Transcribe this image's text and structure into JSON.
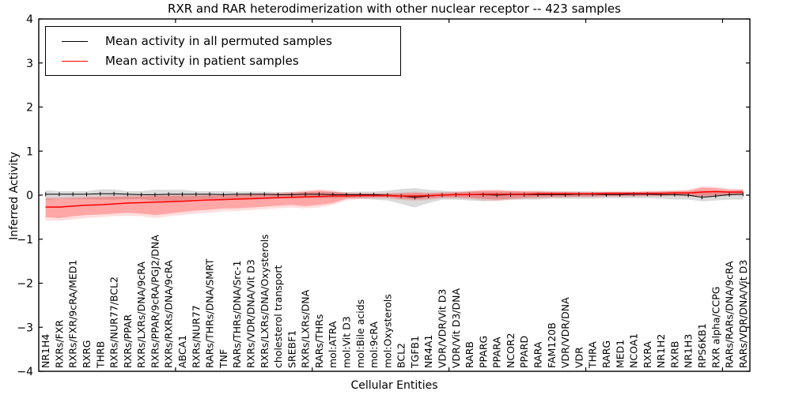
{
  "figure": {
    "title": "RXR and RAR heterodimerization with other nuclear receptor -- 423 samples",
    "xlabel": "Cellular Entities",
    "ylabel": "Inferred Activity"
  },
  "legend": {
    "items": [
      {
        "label": "Mean activity in all permuted samples",
        "color": "#000000"
      },
      {
        "label": "Mean activity in patient samples",
        "color": "#ff0000"
      }
    ]
  },
  "chart_data": {
    "type": "line",
    "title": "RXR and RAR heterodimerization with other nuclear receptor -- 423 samples",
    "xlabel": "Cellular Entities",
    "ylabel": "Inferred Activity",
    "ylim": [
      -4,
      4
    ],
    "yticks": [
      4,
      3,
      2,
      1,
      0,
      -1,
      -2,
      -3,
      -4
    ],
    "xticks_axis_coords": [
      10,
      20,
      30,
      40,
      50
    ],
    "grid": false,
    "legend_position": "upper left",
    "frame_color": "#000000",
    "gray_band_color": "rgba(110,110,110,0.25)",
    "red_band_inner_color": "rgba(255,0,0,0.25)",
    "red_band_outer_color": "rgba(255,0,0,0.13)",
    "categories": [
      "NR1H4",
      "RXRs/FXR",
      "RXRs/FXR/9cRA/MED1",
      "RXRG",
      "THRB",
      "RXRs/NUR77/BCL2",
      "RXRs/PPAR",
      "RXRs/LXRs/DNA/9cRA",
      "RXRs/PPAR/9cRA/PGJ2/DNA",
      "RXRs/RXRs/DNA/9cRA",
      "ABCA1",
      "RXRs/NUR77",
      "RARs/THRs/DNA/SMRT",
      "TNF",
      "RARs/THRs/DNA/Src-1",
      "RXRs/VDR/DNA/Vit D3",
      "RXRs/LXRs/DNA/Oxysterols",
      "cholesterol transport",
      "SREBF1",
      "RXRs/LXRs/DNA",
      "RARs/THRs",
      "mol:ATRA",
      "mol:Vit D3",
      "mol:Bile acids",
      "mol:9cRA",
      "mol:Oxysterols",
      "BCL2",
      "TGFB1",
      "NR4A1",
      "VDR/VDR/Vit D3",
      "VDR/Vit D3/DNA",
      "RARB",
      "PPARG",
      "PPARA",
      "NCOR2",
      "PPARD",
      "RARA",
      "FAM120B",
      "VDR/VDR/DNA",
      "VDR",
      "THRA",
      "RARG",
      "MED1",
      "NCOA1",
      "RXRA",
      "NR1H2",
      "RXRB",
      "NR1H3",
      "RPS6KB1",
      "RXR alpha/CCPG",
      "RARs/RARs/DNA/9cRA",
      "RARs/VDR/DNA/Vit D3"
    ],
    "series": [
      {
        "name": "Mean activity in all permuted samples",
        "color": "#000000",
        "values": [
          0.02,
          0.02,
          0.02,
          0.02,
          0.03,
          0.03,
          0.02,
          0.01,
          0.01,
          0.02,
          0.02,
          0.02,
          0.02,
          0.01,
          0.02,
          0.02,
          0.02,
          0.01,
          0.01,
          0.02,
          0.02,
          0.01,
          0.01,
          0.01,
          0.01,
          0.0,
          -0.02,
          -0.05,
          -0.02,
          0.0,
          0.01,
          0.01,
          0.01,
          0.0,
          0.01,
          0.01,
          0.01,
          0.01,
          0.01,
          0.02,
          0.02,
          0.01,
          0.01,
          0.02,
          0.02,
          0.01,
          0.01,
          0.0,
          -0.05,
          -0.02,
          0.01,
          0.02
        ],
        "band_lo": [
          -0.11,
          -0.09,
          -0.09,
          -0.09,
          -0.1,
          -0.1,
          -0.09,
          -0.09,
          -0.13,
          -0.13,
          -0.12,
          -0.09,
          -0.09,
          -0.09,
          -0.1,
          -0.1,
          -0.09,
          -0.07,
          -0.07,
          -0.07,
          -0.07,
          -0.07,
          -0.07,
          -0.08,
          -0.1,
          -0.12,
          -0.2,
          -0.28,
          -0.18,
          -0.1,
          -0.1,
          -0.12,
          -0.14,
          -0.12,
          -0.1,
          -0.1,
          -0.1,
          -0.08,
          -0.08,
          -0.08,
          -0.08,
          -0.07,
          -0.07,
          -0.07,
          -0.07,
          -0.08,
          -0.1,
          -0.1,
          -0.14,
          -0.12,
          -0.1,
          -0.1
        ],
        "band_hi": [
          0.11,
          0.09,
          0.09,
          0.09,
          0.13,
          0.13,
          0.09,
          0.09,
          0.12,
          0.12,
          0.12,
          0.09,
          0.09,
          0.09,
          0.08,
          0.08,
          0.08,
          0.07,
          0.07,
          0.07,
          0.07,
          0.07,
          0.07,
          0.08,
          0.08,
          0.1,
          0.14,
          0.16,
          0.12,
          0.1,
          0.08,
          0.08,
          0.08,
          0.08,
          0.08,
          0.08,
          0.08,
          0.08,
          0.08,
          0.08,
          0.08,
          0.07,
          0.07,
          0.07,
          0.07,
          0.08,
          0.08,
          0.08,
          0.1,
          0.1,
          0.08,
          0.1
        ]
      },
      {
        "name": "Mean activity in patient samples",
        "color": "#ff0000",
        "values": [
          -0.27,
          -0.27,
          -0.25,
          -0.23,
          -0.22,
          -0.2,
          -0.18,
          -0.17,
          -0.16,
          -0.15,
          -0.14,
          -0.12,
          -0.11,
          -0.1,
          -0.09,
          -0.08,
          -0.07,
          -0.06,
          -0.05,
          -0.04,
          -0.03,
          -0.02,
          -0.02,
          -0.01,
          -0.01,
          -0.01,
          -0.02,
          -0.02,
          -0.01,
          0.0,
          0.01,
          0.01,
          0.02,
          0.02,
          0.02,
          0.02,
          0.03,
          0.03,
          0.03,
          0.03,
          0.03,
          0.04,
          0.04,
          0.04,
          0.04,
          0.04,
          0.05,
          0.05,
          0.07,
          0.08,
          0.07,
          0.07
        ],
        "band_lo": [
          -0.5,
          -0.52,
          -0.48,
          -0.45,
          -0.44,
          -0.42,
          -0.4,
          -0.42,
          -0.45,
          -0.42,
          -0.38,
          -0.35,
          -0.33,
          -0.3,
          -0.3,
          -0.28,
          -0.26,
          -0.24,
          -0.22,
          -0.25,
          -0.22,
          -0.18,
          -0.08,
          -0.06,
          -0.05,
          -0.05,
          -0.08,
          -0.1,
          -0.08,
          -0.05,
          -0.05,
          -0.06,
          -0.08,
          -0.1,
          -0.08,
          -0.06,
          -0.05,
          -0.04,
          -0.04,
          -0.03,
          -0.03,
          -0.02,
          -0.02,
          -0.02,
          -0.01,
          -0.01,
          0.0,
          -0.01,
          -0.02,
          0.0,
          0.01,
          0.02
        ],
        "band_hi": [
          -0.08,
          -0.08,
          -0.07,
          -0.06,
          -0.05,
          -0.04,
          -0.04,
          -0.03,
          -0.02,
          -0.02,
          -0.02,
          -0.02,
          -0.01,
          -0.01,
          0.0,
          0.01,
          0.02,
          0.03,
          0.05,
          0.08,
          0.1,
          0.08,
          0.04,
          0.03,
          0.03,
          0.03,
          0.04,
          0.05,
          0.04,
          0.05,
          0.06,
          0.08,
          0.1,
          0.1,
          0.09,
          0.08,
          0.08,
          0.07,
          0.07,
          0.06,
          0.06,
          0.07,
          0.07,
          0.07,
          0.08,
          0.08,
          0.09,
          0.1,
          0.17,
          0.16,
          0.12,
          0.12
        ],
        "outer_lo": [
          -0.58,
          -0.58,
          -0.55,
          -0.52,
          -0.5,
          -0.48,
          -0.47,
          -0.48,
          -0.52,
          -0.48,
          -0.45,
          -0.42,
          -0.4,
          -0.37,
          -0.36,
          -0.34,
          -0.32,
          -0.3,
          -0.28,
          -0.3,
          -0.28,
          -0.22,
          -0.12,
          -0.09,
          -0.08,
          -0.08,
          -0.11,
          -0.13,
          -0.11,
          -0.08,
          -0.08,
          -0.09,
          -0.12,
          -0.14,
          -0.11,
          -0.09,
          -0.08,
          -0.06,
          -0.06,
          -0.05,
          -0.05,
          -0.04,
          -0.04,
          -0.04,
          -0.03,
          -0.03,
          -0.02,
          -0.03,
          -0.05,
          -0.02,
          -0.01,
          0.0
        ],
        "outer_hi": [
          -0.04,
          -0.04,
          -0.03,
          -0.02,
          -0.01,
          0.0,
          0.0,
          0.01,
          0.02,
          0.02,
          0.02,
          0.02,
          0.02,
          0.02,
          0.03,
          0.04,
          0.05,
          0.06,
          0.08,
          0.11,
          0.13,
          0.11,
          0.06,
          0.05,
          0.05,
          0.05,
          0.06,
          0.08,
          0.06,
          0.07,
          0.08,
          0.1,
          0.12,
          0.13,
          0.11,
          0.1,
          0.1,
          0.09,
          0.09,
          0.08,
          0.08,
          0.09,
          0.09,
          0.09,
          0.1,
          0.1,
          0.11,
          0.13,
          0.2,
          0.19,
          0.15,
          0.14
        ]
      }
    ]
  }
}
